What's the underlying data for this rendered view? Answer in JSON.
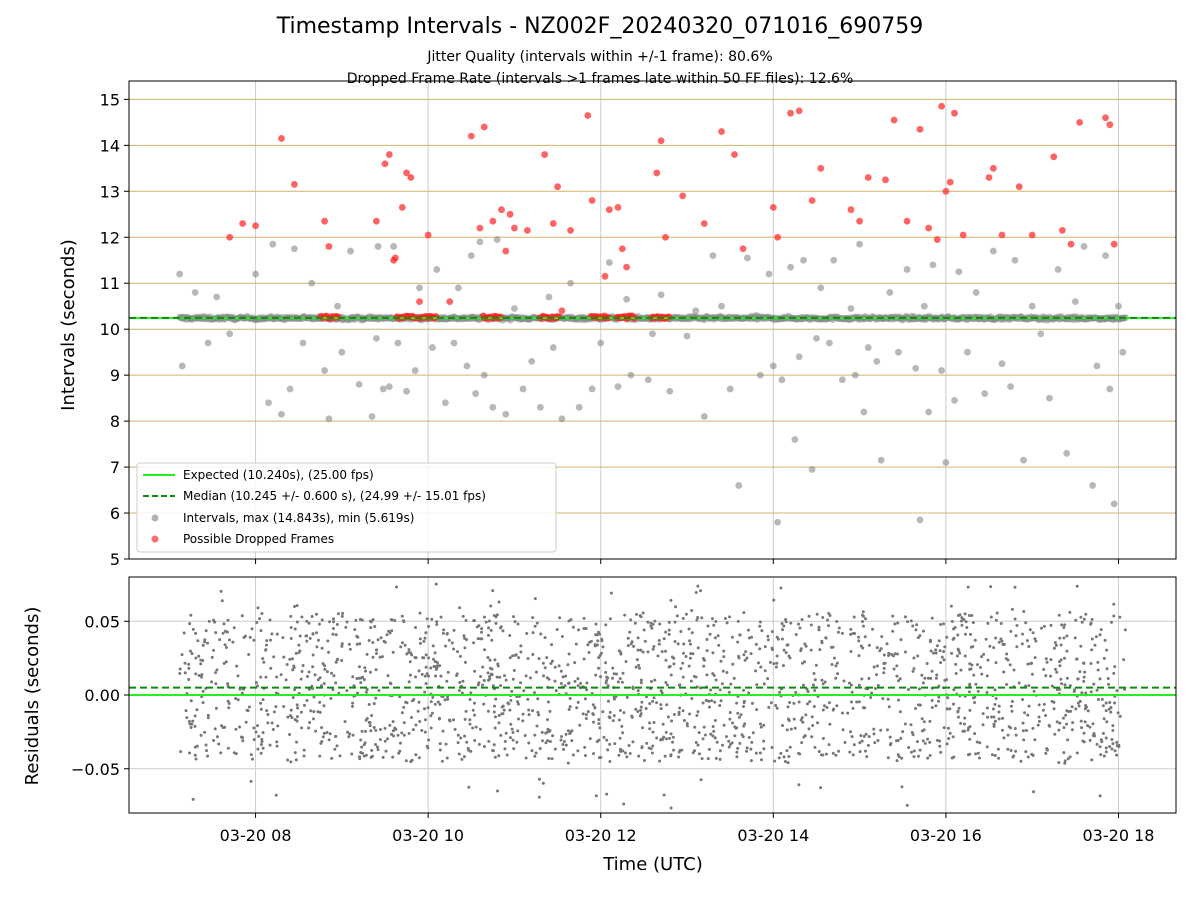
{
  "title": "Timestamp Intervals - NZ002F_20240320_071016_690759",
  "subtitle1": "Jitter Quality (intervals within +/-1 frame): 80.6%",
  "subtitle2": "Dropped Frame Rate (intervals >1 frames late within 50 FF files): 12.6%",
  "colors": {
    "expected": "#22ee22",
    "median": "#118811",
    "interval_points": "#888888",
    "dropped_points": "#ff2222",
    "hline": "#d4b36a",
    "grid": "#cccccc",
    "residual_points": "#777777"
  },
  "chart_data": [
    {
      "type": "scatter",
      "xlabel": "",
      "ylabel": "Intervals (seconds)",
      "ylim": [
        5,
        15.4
      ],
      "xlim": [
        "03-20 06:32",
        "03-20 18:40"
      ],
      "yticks": [
        "5",
        "6",
        "7",
        "8",
        "9",
        "10",
        "11",
        "12",
        "13",
        "14",
        "15"
      ],
      "grid": "vertical at x ticks; horizontal lines at every integer",
      "legend_position": "lower-left",
      "legend": [
        "Expected (10.240s), (25.00 fps)",
        "Median (10.245 +/- 0.600 s), (24.99 +/- 15.01 fps)",
        "Intervals, max (14.843s), min (5.619s)",
        "Possible Dropped Frames"
      ],
      "expected_line": 10.24,
      "median_line": 10.245,
      "x_range_of_points": [
        "03-20 07:10",
        "03-20 18:05"
      ],
      "baseline_cluster": {
        "description": "dense band of intervals near 10.24 s across the whole time range",
        "y": 10.24
      },
      "dropped_clusters_near_baseline": [
        "08:52",
        "09:45",
        "10:00",
        "10:45",
        "11:25",
        "12:00",
        "12:18",
        "12:42"
      ],
      "series": [
        {
          "name": "Intervals, max (14.843s), min (5.619s)",
          "x_hours": [
            7.12,
            7.15,
            7.3,
            7.45,
            7.55,
            7.7,
            8.0,
            8.15,
            8.2,
            8.3,
            8.4,
            8.45,
            8.55,
            8.65,
            8.8,
            8.85,
            8.95,
            9.0,
            9.1,
            9.2,
            9.35,
            9.4,
            9.42,
            9.48,
            9.55,
            9.6,
            9.65,
            9.75,
            9.85,
            9.9,
            10.05,
            10.1,
            10.2,
            10.3,
            10.35,
            10.45,
            10.5,
            10.55,
            10.6,
            10.65,
            10.75,
            10.8,
            10.9,
            11.0,
            11.1,
            11.2,
            11.3,
            11.4,
            11.45,
            11.55,
            11.65,
            11.75,
            11.9,
            12.0,
            12.1,
            12.2,
            12.3,
            12.35,
            12.55,
            12.6,
            12.7,
            12.8,
            13.0,
            13.1,
            13.2,
            13.3,
            13.4,
            13.5,
            13.6,
            13.7,
            13.8,
            13.85,
            13.95,
            14.0,
            14.05,
            14.1,
            14.2,
            14.25,
            14.3,
            14.35,
            14.45,
            14.5,
            14.55,
            14.65,
            14.7,
            14.8,
            14.9,
            14.95,
            15.0,
            15.05,
            15.1,
            15.2,
            15.25,
            15.35,
            15.45,
            15.55,
            15.65,
            15.7,
            15.75,
            15.8,
            15.85,
            15.95,
            16.0,
            16.1,
            16.15,
            16.25,
            16.35,
            16.45,
            16.55,
            16.65,
            16.75,
            16.8,
            16.9,
            17.0,
            17.1,
            17.2,
            17.3,
            17.4,
            17.5,
            17.6,
            17.7,
            17.75,
            17.85,
            17.9,
            17.95,
            18.0,
            18.05
          ],
          "y_values": [
            11.2,
            9.2,
            10.8,
            9.7,
            10.7,
            9.9,
            11.2,
            8.4,
            11.85,
            8.15,
            8.7,
            11.75,
            9.7,
            11.0,
            9.1,
            8.05,
            10.5,
            9.5,
            11.7,
            8.8,
            8.1,
            9.8,
            11.8,
            8.7,
            8.75,
            11.8,
            9.7,
            8.65,
            9.1,
            10.9,
            9.6,
            11.3,
            8.4,
            9.7,
            10.9,
            9.2,
            11.6,
            8.6,
            11.9,
            9.0,
            8.3,
            11.95,
            8.15,
            10.45,
            8.7,
            9.3,
            8.3,
            10.7,
            9.6,
            8.05,
            11.0,
            8.3,
            8.7,
            9.7,
            11.45,
            8.75,
            10.65,
            9.0,
            8.9,
            9.9,
            10.75,
            8.65,
            9.85,
            10.4,
            8.1,
            11.6,
            10.5,
            8.7,
            6.6,
            11.55,
            10.3,
            9.0,
            11.2,
            9.2,
            5.8,
            8.9,
            11.35,
            7.6,
            9.4,
            11.5,
            6.95,
            9.8,
            10.9,
            9.7,
            11.5,
            8.9,
            10.45,
            9.0,
            11.85,
            8.2,
            9.6,
            9.3,
            7.15,
            10.8,
            9.5,
            11.3,
            9.15,
            5.85,
            10.5,
            8.2,
            11.4,
            9.1,
            7.1,
            8.45,
            11.25,
            9.5,
            10.8,
            8.6,
            11.7,
            9.25,
            8.75,
            11.5,
            7.15,
            10.5,
            9.9,
            8.5,
            11.3,
            7.3,
            10.6,
            11.8,
            6.6,
            9.2,
            11.6,
            8.7,
            6.2,
            10.5,
            9.5
          ]
        },
        {
          "name": "Possible Dropped Frames",
          "x_hours": [
            7.7,
            7.85,
            8.0,
            8.3,
            8.45,
            8.8,
            8.85,
            9.4,
            9.5,
            9.55,
            9.6,
            9.62,
            9.7,
            9.75,
            9.8,
            9.9,
            10.0,
            10.25,
            10.5,
            10.6,
            10.65,
            10.75,
            10.85,
            10.9,
            10.95,
            11.0,
            11.15,
            11.35,
            11.45,
            11.5,
            11.55,
            11.65,
            11.85,
            11.9,
            12.05,
            12.1,
            12.2,
            12.25,
            12.3,
            12.65,
            12.7,
            12.75,
            12.95,
            13.2,
            13.4,
            13.55,
            13.65,
            14.0,
            14.05,
            14.2,
            14.3,
            14.45,
            14.55,
            14.9,
            15.0,
            15.1,
            15.3,
            15.4,
            15.55,
            15.7,
            15.8,
            15.9,
            15.95,
            16.0,
            16.05,
            16.1,
            16.2,
            16.5,
            16.55,
            16.65,
            16.85,
            17.0,
            17.25,
            17.35,
            17.45,
            17.55,
            17.85,
            17.9,
            17.95
          ],
          "y_values": [
            12.0,
            12.3,
            12.25,
            14.15,
            13.15,
            12.35,
            11.8,
            12.35,
            13.6,
            13.8,
            11.5,
            11.55,
            12.65,
            13.4,
            13.3,
            10.6,
            12.05,
            10.6,
            14.2,
            12.2,
            14.4,
            12.35,
            12.6,
            11.7,
            12.5,
            12.2,
            12.15,
            13.8,
            12.3,
            13.1,
            10.4,
            12.15,
            14.65,
            12.8,
            11.15,
            12.6,
            12.65,
            11.75,
            11.35,
            13.4,
            14.1,
            12.0,
            12.9,
            12.3,
            14.3,
            13.8,
            11.75,
            12.65,
            12.0,
            14.7,
            14.75,
            12.8,
            13.5,
            12.6,
            12.35,
            13.3,
            13.25,
            14.55,
            12.35,
            14.35,
            12.2,
            11.95,
            14.85,
            13.0,
            13.2,
            14.7,
            12.05,
            13.3,
            13.5,
            12.05,
            13.1,
            12.05,
            13.75,
            12.15,
            11.85,
            14.5,
            14.6,
            14.45,
            11.85
          ]
        },
        {
          "name": "Expected (10.240s), (25.00 fps)",
          "values": [
            10.24
          ]
        },
        {
          "name": "Median (10.245 +/- 0.600 s), (24.99 +/- 15.01 fps)",
          "values": [
            10.245
          ]
        }
      ]
    },
    {
      "type": "scatter",
      "xlabel": "Time (UTC)",
      "ylabel": "Residuals (seconds)",
      "ylim": [
        -0.08,
        0.08
      ],
      "yticks": [
        "−0.05",
        "0.00",
        "0.05"
      ],
      "xticks": [
        "03-20 08",
        "03-20 10",
        "03-20 12",
        "03-20 14",
        "03-20 16",
        "03-20 18"
      ],
      "grid": "on",
      "description": "about 2000 residual points scattered roughly uniformly between -0.05 and 0.06 s from 07:10 to 18:05",
      "expected_line": 0.0,
      "median_line": 0.005,
      "approx_range": [
        -0.078,
        0.078
      ]
    }
  ]
}
